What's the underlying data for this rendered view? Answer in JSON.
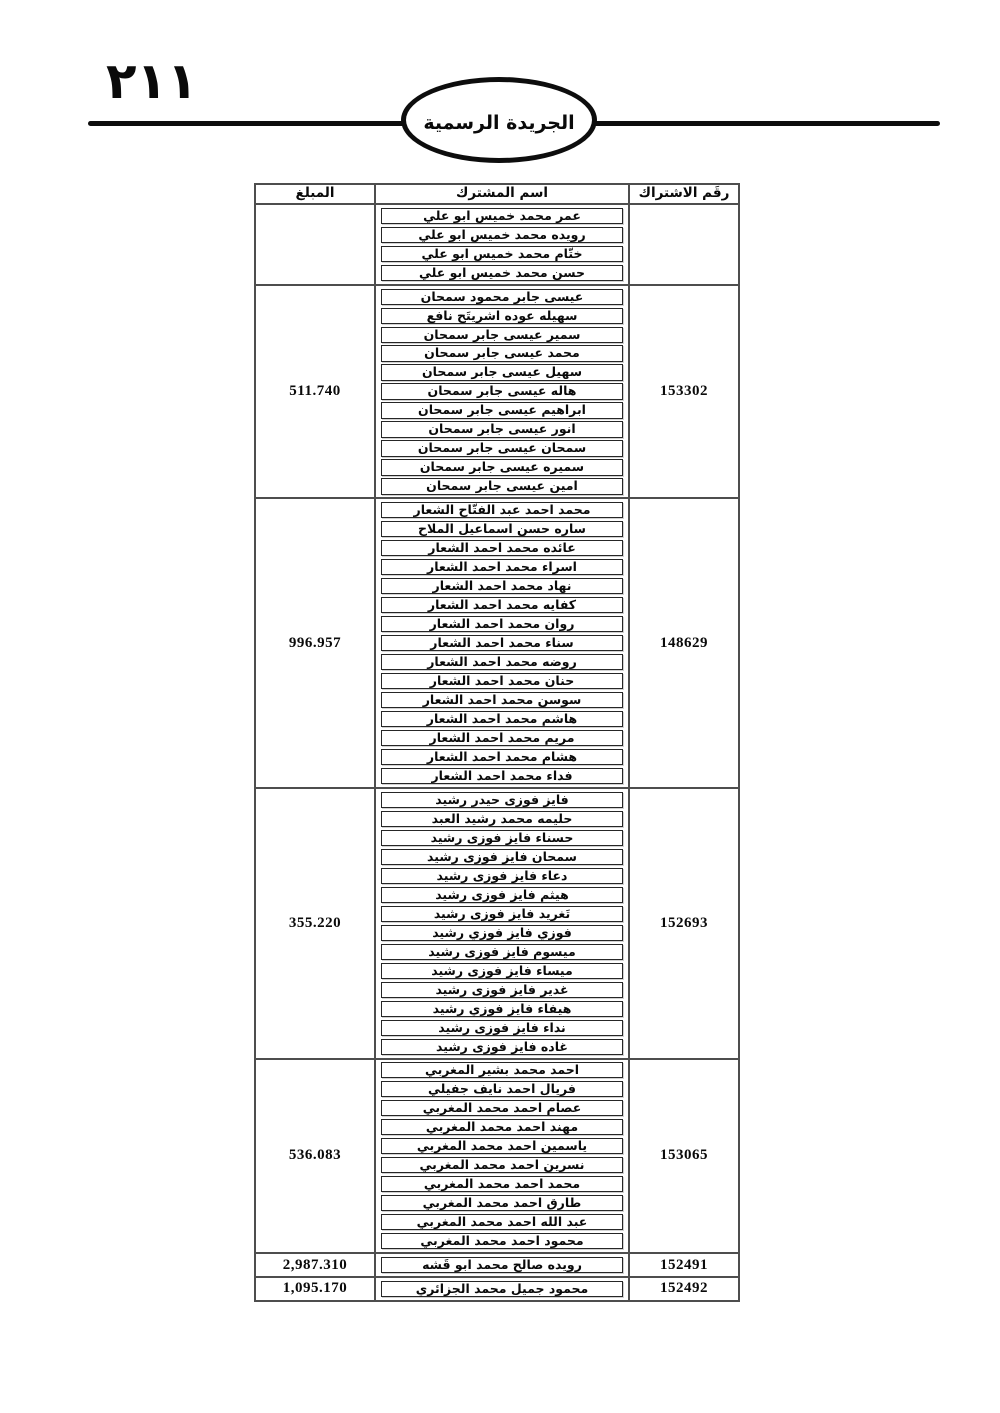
{
  "page": {
    "number": "٢١١",
    "journal_title": "الجريدة الرسمية"
  },
  "colors": {
    "ink": "#0d0d0d",
    "table_border": "#4e4e4e",
    "background": "#ffffff"
  },
  "table": {
    "headers": {
      "subscription_no": "رقَم الاشتراك",
      "name": "اسم المشترك",
      "amount": "المبلغ"
    },
    "groups": [
      {
        "subscription_no": "",
        "amount": "",
        "names": [
          "عمر محمد خميس ابو علي",
          "رويده محمد خميس ابو علي",
          "ختّام محمد خميس ابو علي",
          "حسن محمد خميس ابو علي"
        ]
      },
      {
        "subscription_no": "153302",
        "amount": "511.740",
        "names": [
          "عيسى جابر محمود سمحان",
          "سهيله عوده اشريتَح نافع",
          "سمير عيسى جابر سمحان",
          "محمد عيسى جابر سمحان",
          "سهيل عيسى جابر سمحان",
          "هاله عيسى جابر سمحان",
          "ابراهيم عيسى جابر سمحان",
          "انور عيسى جابر سمحان",
          "سمحان عيسى جابر سمحان",
          "سميره عيسى جابر سمحان",
          "امين عيسى جابر سمحان"
        ]
      },
      {
        "subscription_no": "148629",
        "amount": "996.957",
        "names": [
          "محمد احمد عبد الفتّاح الشعار",
          "ساره حسن اسماعيل الملاح",
          "عائده محمد احمد الشعار",
          "اسراء محمد احمد الشعار",
          "نهاد محمد احمد الشعار",
          "كفايه محمد احمد الشعار",
          "روان محمد احمد الشعار",
          "سناء محمد احمد الشعار",
          "روضه محمد احمد الشعار",
          "حنان محمد احمد الشعار",
          "سوسن محمد احمد الشعار",
          "هاشم محمد احمد الشعار",
          "مريم محمد احمد الشعار",
          "هشام محمد احمد الشعار",
          "فداء محمد احمد الشعار"
        ]
      },
      {
        "subscription_no": "152693",
        "amount": "355.220",
        "names": [
          "فايز فوزى حيدر رشيد",
          "حليمه محمد رشيد العبد",
          "حسناء فايز فوزى رشيد",
          "سمحان فايز فوزى رشيد",
          "دعاء فايز فوزى رشيد",
          "هيثم فايز فوزى رشيد",
          "تَغريد فايز فوزى رشيد",
          "فوزي فايز فوزي رشيد",
          "ميسوم فايز فوزى رشيد",
          "ميساء فايز فوزى رشيد",
          "غدير فايز فوزى رشيد",
          "هيفاء فايز فوزي رشيد",
          "نداء فايز فوزى رشيد",
          "غاده فايز فوزى رشيد"
        ]
      },
      {
        "subscription_no": "153065",
        "amount": "536.083",
        "names": [
          "احمد محمد بشير المغربي",
          "فريال احمد نايف جفيلي",
          "عصام احمد محمد المغربي",
          "مهند احمد محمد المغربي",
          "ياسمين احمد محمد المغربي",
          "نسرين احمد محمد المغربي",
          "محمد احمد محمد المغربي",
          "طارق احمد محمد المغربي",
          "عبد الله احمد محمد المغربي",
          "محمود احمد محمد المغربي"
        ]
      },
      {
        "subscription_no": "152491",
        "amount": "2,987.310",
        "names": [
          "رويده صالح محمد ابو قَشه"
        ]
      },
      {
        "subscription_no": "152492",
        "amount": "1,095.170",
        "names": [
          "محمود جميل محمد الجزائري"
        ]
      }
    ]
  }
}
